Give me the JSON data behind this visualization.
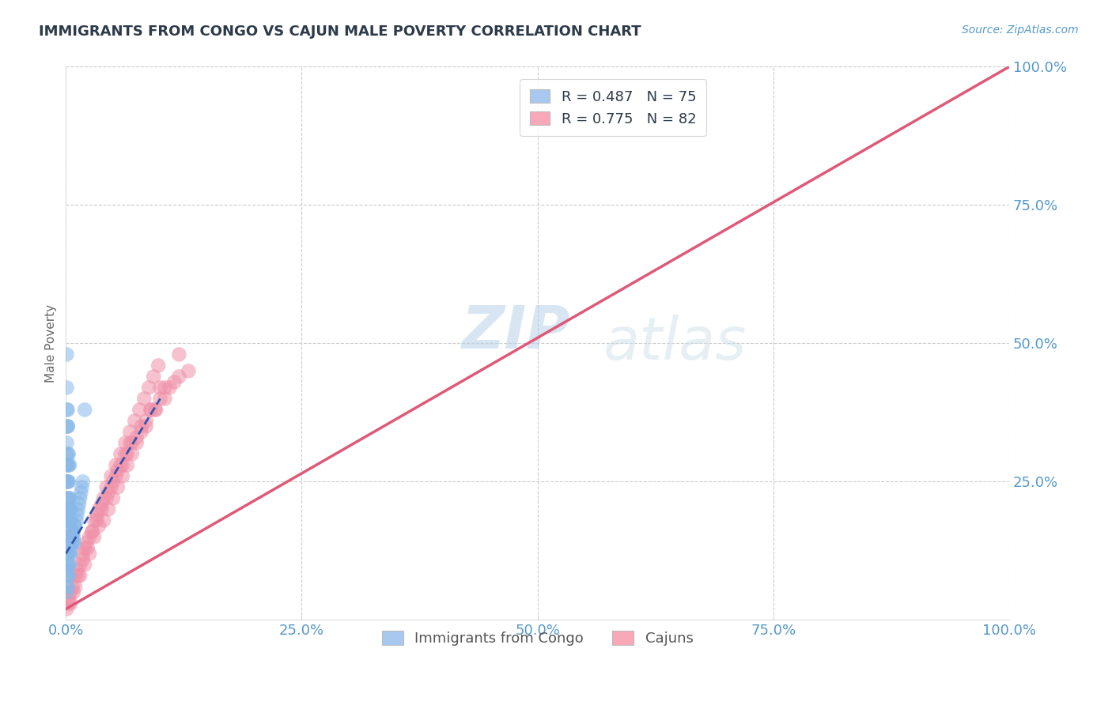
{
  "title": "IMMIGRANTS FROM CONGO VS CAJUN MALE POVERTY CORRELATION CHART",
  "source": "Source: ZipAtlas.com",
  "ylabel": "Male Poverty",
  "xlim": [
    0.0,
    1.0
  ],
  "ylim": [
    0.0,
    1.0
  ],
  "xtick_labels": [
    "0.0%",
    "25.0%",
    "50.0%",
    "75.0%",
    "100.0%"
  ],
  "xtick_positions": [
    0.0,
    0.25,
    0.5,
    0.75,
    1.0
  ],
  "ytick_labels": [
    "25.0%",
    "50.0%",
    "75.0%",
    "100.0%"
  ],
  "ytick_positions": [
    0.25,
    0.5,
    0.75,
    1.0
  ],
  "watermark_line1": "ZIP",
  "watermark_line2": "atlas",
  "legend_entries": [
    {
      "label_r": "R = 0.487",
      "label_n": "N = 75",
      "color": "#a8c8f0"
    },
    {
      "label_r": "R = 0.775",
      "label_n": "N = 82",
      "color": "#f8a8b8"
    }
  ],
  "legend_bottom_entries": [
    {
      "label": "Immigrants from Congo",
      "color": "#a8c8f0"
    },
    {
      "label": "Cajuns",
      "color": "#f8a8b8"
    }
  ],
  "congo_color": "#88b8e8",
  "cajun_color": "#f090a8",
  "congo_line_color": "#3355aa",
  "cajun_line_color": "#e05878",
  "background_color": "#ffffff",
  "grid_color": "#cccccc",
  "title_color": "#2d3a4a",
  "source_color": "#5599cc",
  "axis_tick_color": "#5599cc",
  "ylabel_color": "#666666",
  "congo_scatter_x": [
    0.001,
    0.001,
    0.001,
    0.001,
    0.001,
    0.001,
    0.001,
    0.001,
    0.001,
    0.001,
    0.001,
    0.001,
    0.001,
    0.001,
    0.001,
    0.002,
    0.002,
    0.002,
    0.002,
    0.002,
    0.002,
    0.002,
    0.002,
    0.002,
    0.002,
    0.002,
    0.002,
    0.003,
    0.003,
    0.003,
    0.003,
    0.003,
    0.003,
    0.003,
    0.003,
    0.004,
    0.004,
    0.004,
    0.004,
    0.004,
    0.005,
    0.005,
    0.005,
    0.005,
    0.006,
    0.006,
    0.007,
    0.007,
    0.008,
    0.009,
    0.001,
    0.001,
    0.001,
    0.002,
    0.002,
    0.002,
    0.003,
    0.003,
    0.004,
    0.004,
    0.005,
    0.006,
    0.007,
    0.008,
    0.009,
    0.01,
    0.011,
    0.012,
    0.013,
    0.014,
    0.015,
    0.016,
    0.017,
    0.018,
    0.02
  ],
  "congo_scatter_y": [
    0.05,
    0.08,
    0.1,
    0.12,
    0.15,
    0.18,
    0.2,
    0.22,
    0.25,
    0.28,
    0.3,
    0.35,
    0.38,
    0.42,
    0.48,
    0.08,
    0.1,
    0.12,
    0.15,
    0.18,
    0.2,
    0.22,
    0.25,
    0.28,
    0.3,
    0.35,
    0.38,
    0.1,
    0.12,
    0.15,
    0.18,
    0.2,
    0.22,
    0.25,
    0.28,
    0.12,
    0.15,
    0.18,
    0.2,
    0.22,
    0.12,
    0.15,
    0.18,
    0.2,
    0.14,
    0.16,
    0.14,
    0.16,
    0.15,
    0.14,
    0.06,
    0.09,
    0.32,
    0.06,
    0.25,
    0.35,
    0.08,
    0.3,
    0.1,
    0.28,
    0.13,
    0.14,
    0.15,
    0.16,
    0.17,
    0.17,
    0.18,
    0.19,
    0.2,
    0.21,
    0.22,
    0.23,
    0.24,
    0.25,
    0.38
  ],
  "cajun_scatter_x": [
    0.001,
    0.003,
    0.005,
    0.007,
    0.01,
    0.012,
    0.015,
    0.018,
    0.02,
    0.022,
    0.025,
    0.028,
    0.03,
    0.033,
    0.035,
    0.038,
    0.04,
    0.043,
    0.045,
    0.048,
    0.05,
    0.053,
    0.055,
    0.058,
    0.06,
    0.063,
    0.065,
    0.068,
    0.07,
    0.075,
    0.08,
    0.085,
    0.09,
    0.095,
    0.1,
    0.105,
    0.11,
    0.115,
    0.12,
    0.13,
    0.003,
    0.008,
    0.013,
    0.018,
    0.023,
    0.028,
    0.033,
    0.038,
    0.043,
    0.048,
    0.053,
    0.058,
    0.063,
    0.068,
    0.073,
    0.078,
    0.083,
    0.088,
    0.093,
    0.098,
    0.015,
    0.025,
    0.035,
    0.045,
    0.055,
    0.065,
    0.075,
    0.085,
    0.095,
    0.105,
    0.005,
    0.01,
    0.02,
    0.03,
    0.04,
    0.05,
    0.06,
    0.07,
    0.08,
    0.09,
    0.1,
    0.12
  ],
  "cajun_scatter_y": [
    0.02,
    0.04,
    0.05,
    0.06,
    0.08,
    0.09,
    0.1,
    0.12,
    0.13,
    0.14,
    0.15,
    0.16,
    0.18,
    0.18,
    0.2,
    0.2,
    0.22,
    0.22,
    0.23,
    0.24,
    0.25,
    0.26,
    0.27,
    0.28,
    0.28,
    0.3,
    0.3,
    0.32,
    0.32,
    0.33,
    0.35,
    0.36,
    0.38,
    0.38,
    0.4,
    0.4,
    0.42,
    0.43,
    0.44,
    0.45,
    0.03,
    0.05,
    0.08,
    0.11,
    0.13,
    0.16,
    0.19,
    0.21,
    0.24,
    0.26,
    0.28,
    0.3,
    0.32,
    0.34,
    0.36,
    0.38,
    0.4,
    0.42,
    0.44,
    0.46,
    0.08,
    0.12,
    0.17,
    0.2,
    0.24,
    0.28,
    0.32,
    0.35,
    0.38,
    0.42,
    0.03,
    0.06,
    0.1,
    0.15,
    0.18,
    0.22,
    0.26,
    0.3,
    0.34,
    0.38,
    0.42,
    0.48
  ],
  "congo_trend_x": [
    0.0,
    0.1
  ],
  "congo_trend_y": [
    0.12,
    0.4
  ],
  "cajun_trend_x": [
    0.0,
    1.0
  ],
  "cajun_trend_y": [
    0.02,
    1.0
  ]
}
